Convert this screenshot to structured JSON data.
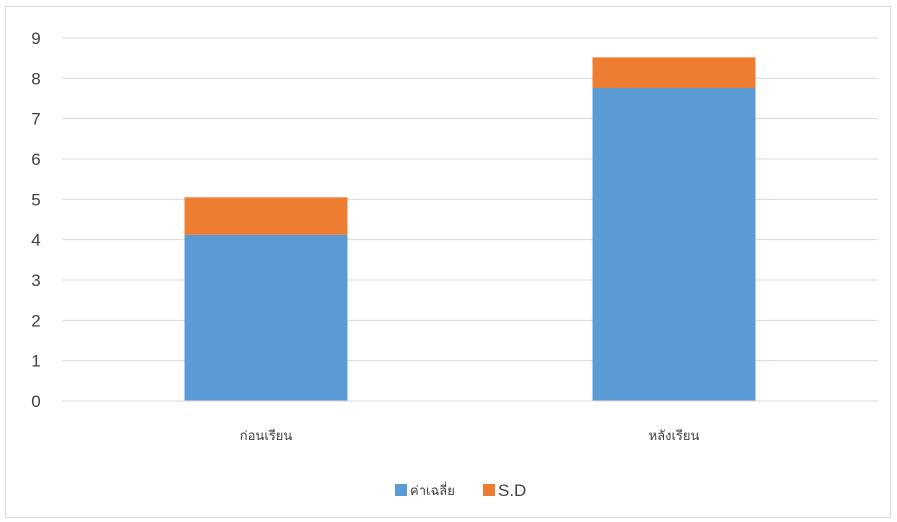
{
  "chart_data": {
    "type": "bar",
    "stacked": true,
    "categories": [
      "ก่อนเรียน",
      "หลังเรียน"
    ],
    "series": [
      {
        "name": "ค่าเฉลี่ย",
        "values": [
          4.12,
          7.76
        ],
        "color": "#5b9bd5"
      },
      {
        "name": "S.D",
        "values": [
          0.93,
          0.76
        ],
        "color": "#ed7d31"
      }
    ],
    "ylim": [
      0,
      9
    ],
    "yticks": [
      "0",
      "1",
      "2",
      "3",
      "4",
      "5",
      "6",
      "7",
      "8",
      "9"
    ],
    "grid": true,
    "legend_position": "bottom",
    "title": "",
    "xlabel": "",
    "ylabel": ""
  }
}
